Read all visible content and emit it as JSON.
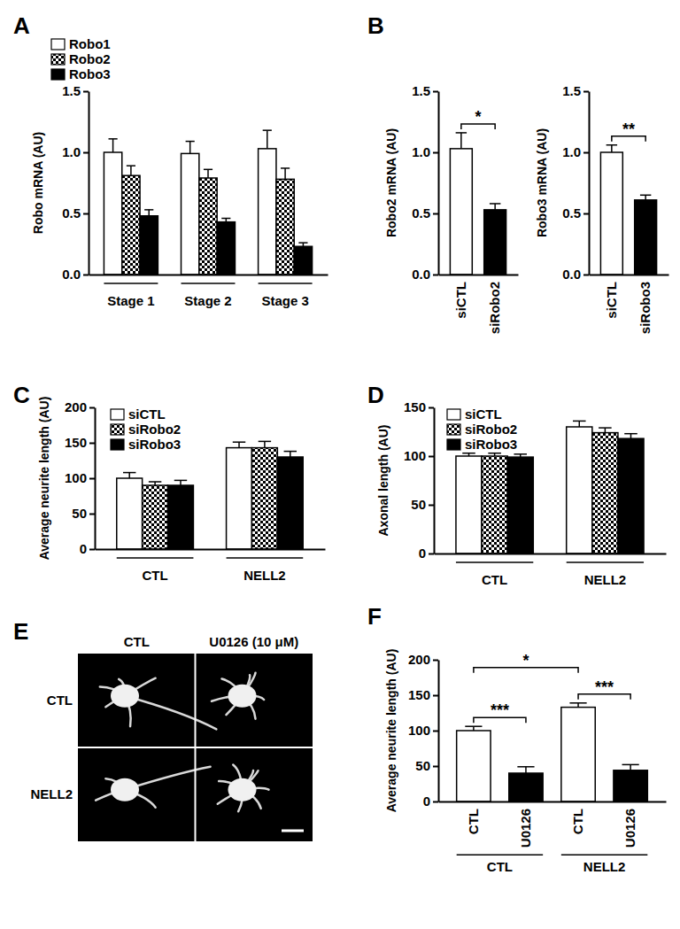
{
  "chart_data": [
    {
      "panel": "A",
      "type": "bar",
      "y_label": "Robo mRNA (AU)",
      "categories": [
        "Stage 1",
        "Stage 2",
        "Stage 3"
      ],
      "series": [
        {
          "name": "Robo1",
          "color": "#ffffff",
          "marker": "solid",
          "values": [
            1.0,
            0.99,
            1.03
          ],
          "errors": [
            0.11,
            0.1,
            0.15
          ]
        },
        {
          "name": "Robo2",
          "color": "#000000",
          "marker": "checkered",
          "values": [
            0.81,
            0.79,
            0.78
          ],
          "errors": [
            0.08,
            0.07,
            0.09
          ]
        },
        {
          "name": "Robo3",
          "color": "#000000",
          "marker": "solid",
          "values": [
            0.48,
            0.43,
            0.23
          ],
          "errors": [
            0.05,
            0.03,
            0.03
          ]
        }
      ],
      "ylim": [
        0,
        1.5
      ],
      "yticks": [
        {
          "value": 0,
          "label": "0.0"
        },
        0.5,
        {
          "value": 1,
          "label": "1.0"
        },
        1.5
      ],
      "legend": "upper left"
    },
    {
      "panel": "B",
      "type": "bar",
      "y_label": "Robo2 mRNA (AU)",
      "categories": [
        "siCTL",
        "siRobo2"
      ],
      "values": [
        1.03,
        0.53
      ],
      "errors": [
        0.13,
        0.05
      ],
      "colors": [
        "#ffffff",
        "#000000"
      ],
      "ylim": [
        0,
        1.5
      ],
      "yticks": [
        {
          "value": 0,
          "label": "0.0"
        },
        0.5,
        {
          "value": 1,
          "label": "1.0"
        },
        1.5
      ],
      "comparisons": [
        {
          "from": 0,
          "to": 1,
          "label": "*"
        }
      ]
    },
    {
      "type": "bar",
      "y_label": "Robo3 mRNA (AU)",
      "categories": [
        "siCTL",
        "siRobo3"
      ],
      "values": [
        1.0,
        0.61
      ],
      "errors": [
        0.06,
        0.04
      ],
      "colors": [
        "#ffffff",
        "#000000"
      ],
      "ylim": [
        0,
        1.5
      ],
      "yticks": [
        {
          "value": 0,
          "label": "0.0"
        },
        0.5,
        {
          "value": 1,
          "label": "1.0"
        },
        1.5
      ],
      "comparisons": [
        {
          "from": 0,
          "to": 1,
          "label": "**"
        }
      ]
    },
    {
      "panel": "C",
      "type": "bar",
      "y_label": "Average neurite length (AU)",
      "categories": [
        "CTL",
        "NELL2"
      ],
      "series": [
        {
          "name": "siCTL",
          "color": "#ffffff",
          "marker": "solid",
          "values": [
            100,
            143
          ],
          "errors": [
            8,
            8
          ]
        },
        {
          "name": "siRobo2",
          "color": "#000000",
          "marker": "checkered",
          "values": [
            90,
            143
          ],
          "errors": [
            5,
            9
          ]
        },
        {
          "name": "siRobo3",
          "color": "#000000",
          "marker": "solid",
          "values": [
            90,
            130
          ],
          "errors": [
            7,
            8
          ]
        }
      ],
      "ylim": [
        0,
        200
      ],
      "yticks": [
        0,
        50,
        100,
        150,
        200
      ],
      "legend": "upper left"
    },
    {
      "panel": "D",
      "type": "bar",
      "y_label": "Axonal length (AU)",
      "categories": [
        "CTL",
        "NELL2"
      ],
      "series": [
        {
          "name": "siCTL",
          "color": "#ffffff",
          "marker": "solid",
          "values": [
            100,
            130
          ],
          "errors": [
            3,
            6
          ]
        },
        {
          "name": "siRobo2",
          "color": "#000000",
          "marker": "checkered",
          "values": [
            100,
            124
          ],
          "errors": [
            3,
            5
          ]
        },
        {
          "name": "siRobo3",
          "color": "#000000",
          "marker": "solid",
          "values": [
            99,
            118
          ],
          "errors": [
            3,
            5
          ]
        }
      ],
      "ylim": [
        0,
        150
      ],
      "yticks": [
        0,
        50,
        100,
        150
      ],
      "legend": "upper left"
    },
    {
      "panel": "E",
      "type": "image",
      "column_labels": [
        "CTL",
        "U0126 (10 μM)"
      ],
      "row_labels": [
        "CTL",
        "NELL2"
      ]
    },
    {
      "panel": "F",
      "type": "bar",
      "y_label": "Average neurite length (AU)",
      "categories": [
        "CTL",
        "U0126",
        "CTL",
        "U0126"
      ],
      "x_groups": [
        "CTL",
        "NELL2"
      ],
      "values": [
        100,
        40,
        133,
        44
      ],
      "errors": [
        6,
        9,
        6,
        8
      ],
      "colors": [
        "#ffffff",
        "#000000",
        "#ffffff",
        "#000000"
      ],
      "ylim": [
        0,
        200
      ],
      "yticks": [
        0,
        50,
        100,
        150,
        200
      ],
      "comparisons": [
        {
          "from": 0,
          "to": 1,
          "label": "***"
        },
        {
          "from": 2,
          "to": 3,
          "label": "***"
        },
        {
          "from": 0,
          "to": 2,
          "label": "*"
        }
      ]
    }
  ]
}
